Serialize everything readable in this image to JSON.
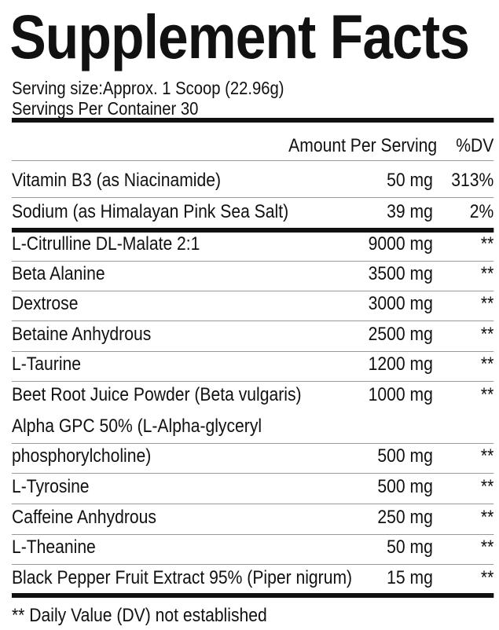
{
  "title": "Supplement Facts",
  "serving_size": "Serving size:Approx. 1 Scoop (22.96g)",
  "servings_per_container": "Servings Per Container 30",
  "header": {
    "amount": "Amount Per Serving",
    "dv": "%DV"
  },
  "vitamins": [
    {
      "name": "Vitamin B3 (as Niacinamide)",
      "amount": "50 mg",
      "dv": "313%"
    },
    {
      "name": "Sodium (as Himalayan Pink Sea Salt)",
      "amount": "39 mg",
      "dv": "2%"
    }
  ],
  "ingredients": [
    {
      "name": "L-Citrulline DL-Malate 2:1",
      "amount": "9000 mg",
      "dv": "**"
    },
    {
      "name": "Beta Alanine",
      "amount": "3500 mg",
      "dv": "**"
    },
    {
      "name": "Dextrose",
      "amount": "3000 mg",
      "dv": "**"
    },
    {
      "name": "Betaine Anhydrous",
      "amount": "2500 mg",
      "dv": "**"
    },
    {
      "name": "L-Taurine",
      "amount": "1200 mg",
      "dv": "**"
    },
    {
      "name": "Beet Root Juice Powder (Beta vulgaris)",
      "amount": "1000 mg",
      "dv": "**"
    },
    {
      "name": "Alpha GPC 50% (L-Alpha-glyceryl",
      "amount": "",
      "dv": ""
    },
    {
      "name": "phosphorylcholine)",
      "amount": "500 mg",
      "dv": "**"
    },
    {
      "name": "L-Tyrosine",
      "amount": "500 mg",
      "dv": "**"
    },
    {
      "name": "Caffeine Anhydrous",
      "amount": "250 mg",
      "dv": "**"
    },
    {
      "name": "L-Theanine",
      "amount": "50 mg",
      "dv": "**"
    },
    {
      "name": "Black Pepper Fruit Extract 95% (Piper nigrum)",
      "amount": "15 mg",
      "dv": "**"
    }
  ],
  "footnote": "** Daily Value (DV) not established"
}
